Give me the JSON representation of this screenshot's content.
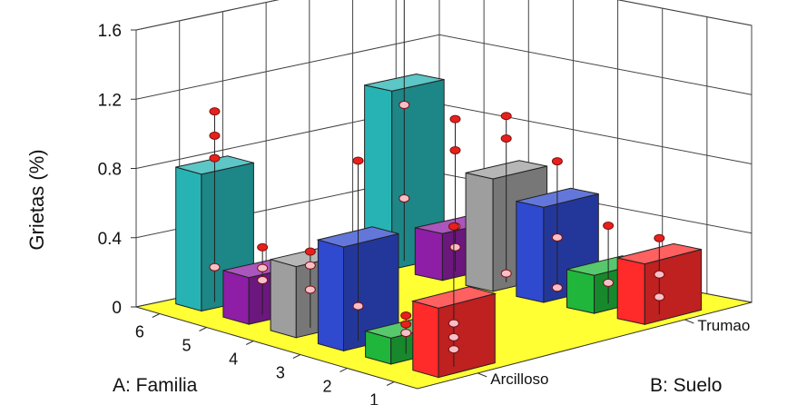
{
  "chart_data": {
    "type": "bar3d",
    "ylabel": "Grietas (%)",
    "xlabel": "A: Familia",
    "zlabel": "B: Suelo",
    "x_categories": [
      "1",
      "2",
      "3",
      "4",
      "5",
      "6"
    ],
    "z_categories": [
      "Arcilloso",
      "Trumao"
    ],
    "y_ticks": [
      "0",
      "0.4",
      "0.8",
      "1.2",
      "1.6"
    ],
    "ylim": [
      0,
      1.6
    ],
    "grid": true,
    "floor_color": "#ffff33",
    "bar_colors": {
      "1": "#ff2b2b",
      "2": "#1fb63b",
      "3": "#2f49cf",
      "4": "#9e9e9e",
      "5": "#8e1ea6",
      "6": "#27b3b3"
    },
    "series": [
      {
        "suelo": "Arcilloso",
        "values": [
          0.4,
          0.15,
          0.6,
          0.41,
          0.27,
          0.79
        ],
        "observations": [
          [
            0.81,
            0.25,
            0.17,
            0.1
          ],
          [
            0.22,
            0.17,
            0.12
          ],
          [
            1.04,
            0.2
          ],
          [
            0.44,
            0.36,
            0.22
          ],
          [
            0.39,
            0.27,
            0.2
          ],
          [
            1.1,
            0.96,
            0.83,
            0.2
          ]
        ]
      },
      {
        "suelo": "Trumao",
        "values": [
          0.35,
          0.22,
          0.55,
          0.65,
          0.27,
          1.03
        ],
        "observations": [
          [
            0.44,
            0.23,
            0.1
          ],
          [
            0.45,
            0.12
          ],
          [
            0.76,
            0.32,
            0.03
          ],
          [
            0.96,
            0.83,
            0.05
          ],
          [
            0.88,
            0.7,
            0.26,
            0.14
          ],
          [
            1.66,
            0.9,
            0.36
          ]
        ]
      }
    ]
  }
}
